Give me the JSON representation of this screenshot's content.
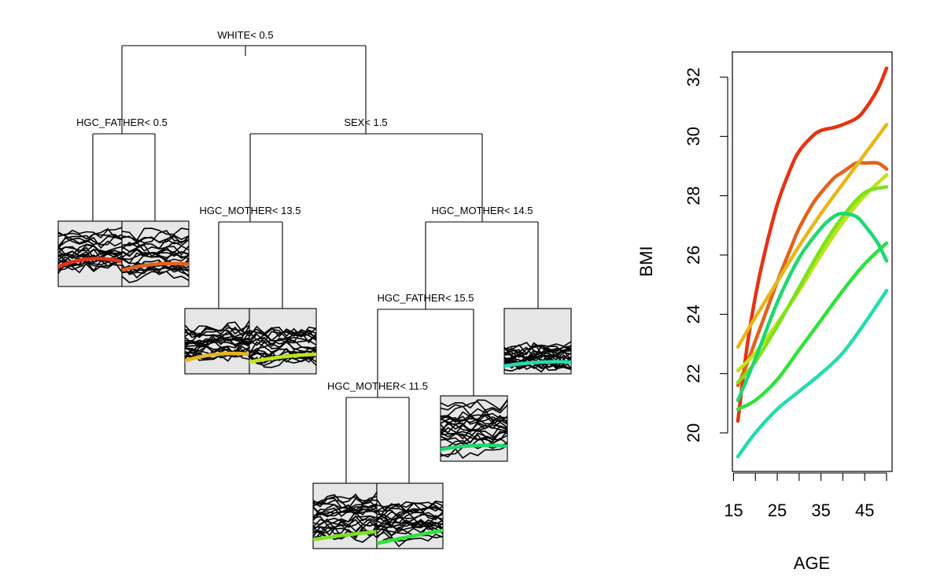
{
  "tree": {
    "splits": [
      {
        "id": "root",
        "label": "WHITE< 0.5"
      },
      {
        "id": "n2",
        "label": "HGC_FATHER< 0.5"
      },
      {
        "id": "n3",
        "label": "SEX< 1.5"
      },
      {
        "id": "n6",
        "label": "HGC_MOTHER< 13.5"
      },
      {
        "id": "n7",
        "label": "HGC_MOTHER< 14.5"
      },
      {
        "id": "n14",
        "label": "HGC_FATHER< 15.5"
      },
      {
        "id": "n28",
        "label": "HGC_MOTHER< 11.5"
      }
    ],
    "leaves": [
      {
        "id": "L1",
        "color": "#e63312"
      },
      {
        "id": "L2",
        "color": "#e3621b"
      },
      {
        "id": "L3",
        "color": "#e8b619"
      },
      {
        "id": "L4",
        "color": "#bde51a"
      },
      {
        "id": "L5",
        "color": "#7de11c"
      },
      {
        "id": "L6",
        "color": "#2fe23a"
      },
      {
        "id": "L7",
        "color": "#1ed871"
      },
      {
        "id": "L8",
        "color": "#22dcae"
      }
    ]
  },
  "chart_data": {
    "type": "line",
    "xlabel": "AGE",
    "ylabel": "BMI",
    "xlim": [
      15,
      50
    ],
    "ylim": [
      19,
      33
    ],
    "xticks": [
      15,
      20,
      25,
      30,
      35,
      40,
      45,
      50
    ],
    "xtick_labels": [
      "15",
      "",
      "25",
      "",
      "35",
      "",
      "45",
      ""
    ],
    "yticks": [
      20,
      22,
      24,
      26,
      28,
      30,
      32
    ],
    "ytick_labels": [
      "20",
      "22",
      "24",
      "26",
      "28",
      "30",
      "32"
    ],
    "grid": false,
    "series": [
      {
        "color": "#e63312",
        "x": [
          16,
          18,
          20,
          22,
          25,
          28,
          30,
          33,
          35,
          38,
          40,
          43,
          45,
          48,
          50
        ],
        "y": [
          20.4,
          22.8,
          24.6,
          26.0,
          27.7,
          28.9,
          29.5,
          30.0,
          30.2,
          30.3,
          30.4,
          30.6,
          30.9,
          31.6,
          32.3
        ]
      },
      {
        "color": "#e3621b",
        "x": [
          16,
          18,
          20,
          22,
          25,
          28,
          30,
          33,
          35,
          38,
          40,
          43,
          45,
          48,
          50
        ],
        "y": [
          21.6,
          22.3,
          23.1,
          23.9,
          25.1,
          26.2,
          26.9,
          27.7,
          28.1,
          28.6,
          28.8,
          29.1,
          29.1,
          29.1,
          28.9
        ]
      },
      {
        "color": "#e8b619",
        "x": [
          16,
          20,
          25,
          30,
          35,
          40,
          45,
          50
        ],
        "y": [
          22.9,
          23.9,
          25.1,
          26.3,
          27.4,
          28.4,
          29.4,
          30.4
        ]
      },
      {
        "color": "#bde51a",
        "x": [
          16,
          20,
          25,
          30,
          35,
          40,
          45,
          50
        ],
        "y": [
          22.1,
          22.7,
          23.7,
          24.8,
          26.0,
          27.1,
          28.0,
          28.7
        ]
      },
      {
        "color": "#7de11c",
        "x": [
          16,
          20,
          25,
          30,
          35,
          40,
          45,
          50
        ],
        "y": [
          21.7,
          22.4,
          23.6,
          24.9,
          26.2,
          27.3,
          28.1,
          28.3
        ]
      },
      {
        "color": "#2fe23a",
        "x": [
          16,
          20,
          25,
          30,
          35,
          40,
          45,
          50
        ],
        "y": [
          20.8,
          21.1,
          21.8,
          22.8,
          23.8,
          24.8,
          25.7,
          26.4
        ]
      },
      {
        "color": "#1ed871",
        "x": [
          16,
          20,
          25,
          30,
          35,
          38,
          40,
          43,
          45,
          48,
          50
        ],
        "y": [
          21.1,
          22.5,
          24.4,
          25.9,
          26.9,
          27.3,
          27.4,
          27.3,
          27.0,
          26.4,
          25.8
        ]
      },
      {
        "color": "#22dcae",
        "x": [
          16,
          20,
          25,
          30,
          35,
          40,
          45,
          50
        ],
        "y": [
          19.2,
          20.0,
          20.8,
          21.4,
          22.0,
          22.7,
          23.7,
          24.8
        ]
      }
    ]
  }
}
